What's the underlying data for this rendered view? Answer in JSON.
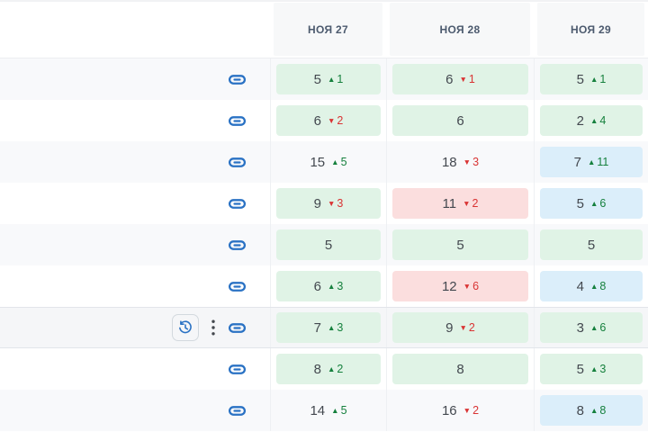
{
  "header": {
    "dates": [
      "НОЯ 27",
      "НОЯ 28",
      "НОЯ 29"
    ]
  },
  "glyphs": {
    "up": "▲",
    "down": "▼"
  },
  "colors": {
    "link_blue": "#2a72c4",
    "cell_green": "#e0f3e6",
    "cell_blue": "#dbeefa",
    "cell_red": "#fbdede",
    "change_up_green": "#15803d",
    "change_down_red": "#d93434",
    "row_stripe": "#f8f9fb",
    "header_bg": "#f7f8f9"
  },
  "rows": [
    {
      "cells": [
        {
          "pos": "5",
          "dir": "up",
          "change": "1",
          "bg": "green"
        },
        {
          "pos": "6",
          "dir": "down",
          "change": "1",
          "bg": "green"
        },
        {
          "pos": "5",
          "dir": "up",
          "change": "1",
          "bg": "green"
        }
      ]
    },
    {
      "cells": [
        {
          "pos": "6",
          "dir": "down",
          "change": "2",
          "bg": "green"
        },
        {
          "pos": "6",
          "bg": "green"
        },
        {
          "pos": "2",
          "dir": "up",
          "change": "4",
          "bg": "green"
        }
      ]
    },
    {
      "cells": [
        {
          "pos": "15",
          "dir": "up",
          "change": "5",
          "bg": "none"
        },
        {
          "pos": "18",
          "dir": "down",
          "change": "3",
          "bg": "none"
        },
        {
          "pos": "7",
          "dir": "up",
          "change": "11",
          "bg": "blue"
        }
      ]
    },
    {
      "cells": [
        {
          "pos": "9",
          "dir": "down",
          "change": "3",
          "bg": "green"
        },
        {
          "pos": "11",
          "dir": "down",
          "change": "2",
          "bg": "red"
        },
        {
          "pos": "5",
          "dir": "up",
          "change": "6",
          "bg": "blue"
        }
      ]
    },
    {
      "cells": [
        {
          "pos": "5",
          "bg": "green"
        },
        {
          "pos": "5",
          "bg": "green"
        },
        {
          "pos": "5",
          "bg": "green"
        }
      ]
    },
    {
      "cells": [
        {
          "pos": "6",
          "dir": "up",
          "change": "3",
          "bg": "green"
        },
        {
          "pos": "12",
          "dir": "down",
          "change": "6",
          "bg": "red"
        },
        {
          "pos": "4",
          "dir": "up",
          "change": "8",
          "bg": "blue"
        }
      ]
    },
    {
      "hovered": true,
      "cells": [
        {
          "pos": "7",
          "dir": "up",
          "change": "3",
          "bg": "green"
        },
        {
          "pos": "9",
          "dir": "down",
          "change": "2",
          "bg": "green"
        },
        {
          "pos": "3",
          "dir": "up",
          "change": "6",
          "bg": "green"
        }
      ]
    },
    {
      "cells": [
        {
          "pos": "8",
          "dir": "up",
          "change": "2",
          "bg": "green"
        },
        {
          "pos": "8",
          "bg": "green"
        },
        {
          "pos": "5",
          "dir": "up",
          "change": "3",
          "bg": "green"
        }
      ]
    },
    {
      "cells": [
        {
          "pos": "14",
          "dir": "up",
          "change": "5",
          "bg": "none"
        },
        {
          "pos": "16",
          "dir": "down",
          "change": "2",
          "bg": "none"
        },
        {
          "pos": "8",
          "dir": "up",
          "change": "8",
          "bg": "blue"
        }
      ]
    }
  ]
}
